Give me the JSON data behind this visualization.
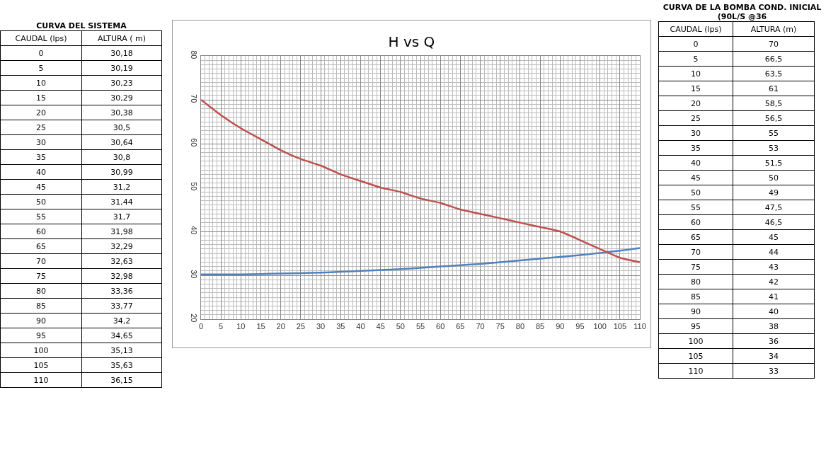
{
  "chart_data": [
    {
      "type": "heatmap",
      "title": "CURVA DEL SISTEMA",
      "ylabel": "CAUDAL (lps)",
      "categories": [
        "ALTURA ( m)"
      ],
      "y_categories": [
        "0",
        "5",
        "10",
        "15",
        "20",
        "25",
        "30",
        "35",
        "40",
        "45",
        "50",
        "55",
        "60",
        "65",
        "70",
        "75",
        "80",
        "85",
        "90",
        "95",
        "100",
        "105",
        "110"
      ],
      "cells": [
        [
          30.18
        ],
        [
          30.19
        ],
        [
          30.23
        ],
        [
          30.29
        ],
        [
          30.38
        ],
        [
          30.5
        ],
        [
          30.64
        ],
        [
          30.8
        ],
        [
          30.99
        ],
        [
          31.2
        ],
        [
          31.44
        ],
        [
          31.7
        ],
        [
          31.98
        ],
        [
          32.29
        ],
        [
          32.63
        ],
        [
          32.98
        ],
        [
          33.36
        ],
        [
          33.77
        ],
        [
          34.2
        ],
        [
          34.65
        ],
        [
          35.13
        ],
        [
          35.63
        ],
        [
          36.15
        ]
      ],
      "cell_labels": [
        [
          "30,18"
        ],
        [
          "30,19"
        ],
        [
          "30,23"
        ],
        [
          "30,29"
        ],
        [
          "30,38"
        ],
        [
          "30,5"
        ],
        [
          "30,64"
        ],
        [
          "30,8"
        ],
        [
          "30,99"
        ],
        [
          "31,2"
        ],
        [
          "31,44"
        ],
        [
          "31,7"
        ],
        [
          "31,98"
        ],
        [
          "32,29"
        ],
        [
          "32,63"
        ],
        [
          "32,98"
        ],
        [
          "33,36"
        ],
        [
          "33,77"
        ],
        [
          "34,2"
        ],
        [
          "34,65"
        ],
        [
          "35,13"
        ],
        [
          "35,63"
        ],
        [
          "36,15"
        ]
      ]
    },
    {
      "type": "line",
      "title": "H vs Q",
      "x": [
        0,
        5,
        10,
        15,
        20,
        25,
        30,
        35,
        40,
        45,
        50,
        55,
        60,
        65,
        70,
        75,
        80,
        85,
        90,
        95,
        100,
        105,
        110
      ],
      "series": [
        {
          "color": "#4f81bd",
          "values": [
            30.2,
            30.2,
            30.2,
            30.3,
            30.4,
            30.5,
            30.6,
            30.8,
            31.0,
            31.2,
            31.4,
            31.7,
            32.0,
            32.3,
            32.6,
            33.0,
            33.4,
            33.8,
            34.2,
            34.6,
            35.1,
            35.6,
            36.2
          ]
        },
        {
          "color": "#c0504d",
          "values": [
            70,
            66.5,
            63.5,
            61,
            58.5,
            56.5,
            55,
            53,
            51.5,
            50,
            49,
            47.5,
            46.5,
            45,
            44,
            43,
            42,
            41,
            40,
            38,
            36,
            34,
            33
          ]
        }
      ],
      "xlim": [
        0,
        110
      ],
      "xticks": [
        0,
        5,
        10,
        15,
        20,
        25,
        30,
        35,
        40,
        45,
        50,
        55,
        60,
        65,
        70,
        75,
        80,
        85,
        90,
        95,
        100,
        105,
        110
      ],
      "ylim": [
        20,
        80
      ],
      "yticks": [
        20,
        30,
        40,
        50,
        60,
        70,
        80
      ],
      "grid": true,
      "legend": false,
      "marker": "none",
      "line_style": "solid"
    },
    {
      "type": "heatmap",
      "title": "CURVA DE LA BOMBA COND. INICIAL (90L/S @36",
      "ylabel": "CAUDAL (lps)",
      "categories": [
        "ALTURA (m)"
      ],
      "y_categories": [
        "0",
        "5",
        "10",
        "15",
        "20",
        "25",
        "30",
        "35",
        "40",
        "45",
        "50",
        "55",
        "60",
        "65",
        "70",
        "75",
        "80",
        "85",
        "90",
        "95",
        "100",
        "105",
        "110"
      ],
      "cells": [
        [
          70
        ],
        [
          66.5
        ],
        [
          63.5
        ],
        [
          61
        ],
        [
          58.5
        ],
        [
          56.5
        ],
        [
          55
        ],
        [
          53
        ],
        [
          51.5
        ],
        [
          50
        ],
        [
          49
        ],
        [
          47.5
        ],
        [
          46.5
        ],
        [
          45
        ],
        [
          44
        ],
        [
          43
        ],
        [
          42
        ],
        [
          41
        ],
        [
          40
        ],
        [
          38
        ],
        [
          36
        ],
        [
          34
        ],
        [
          33
        ]
      ],
      "cell_labels": [
        [
          "70"
        ],
        [
          "66,5"
        ],
        [
          "63,5"
        ],
        [
          "61"
        ],
        [
          "58,5"
        ],
        [
          "56,5"
        ],
        [
          "55"
        ],
        [
          "53"
        ],
        [
          "51,5"
        ],
        [
          "50"
        ],
        [
          "49"
        ],
        [
          "47,5"
        ],
        [
          "46,5"
        ],
        [
          "45"
        ],
        [
          "44"
        ],
        [
          "43"
        ],
        [
          "42"
        ],
        [
          "41"
        ],
        [
          "40"
        ],
        [
          "38"
        ],
        [
          "36"
        ],
        [
          "34"
        ],
        [
          "33"
        ]
      ]
    }
  ]
}
